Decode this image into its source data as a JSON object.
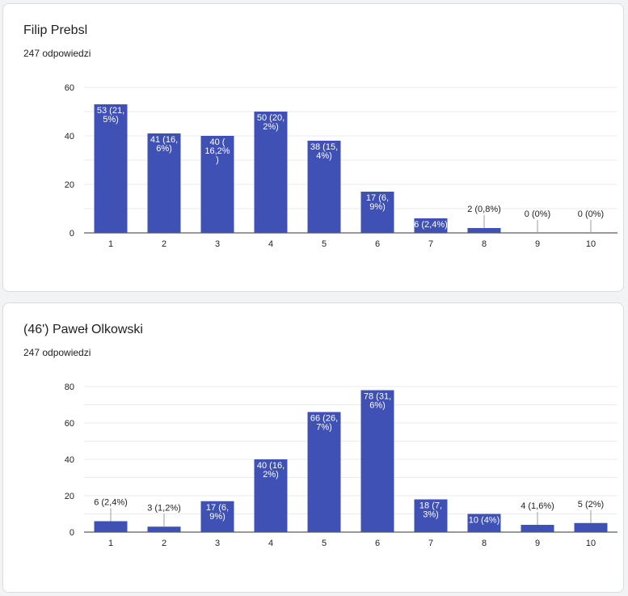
{
  "charts": [
    {
      "title": "Filip Prebsl",
      "responses": "247 odpowiedzi"
    },
    {
      "title": "(46') Paweł Olkowski",
      "responses": "247 odpowiedzi"
    }
  ],
  "colors": {
    "bar": "#3f51b5",
    "grid": "#ebebeb",
    "axis": "#333333"
  },
  "chart_data": [
    {
      "type": "bar",
      "title": "Filip Prebsl",
      "subtitle": "247 odpowiedzi",
      "categories": [
        "1",
        "2",
        "3",
        "4",
        "5",
        "6",
        "7",
        "8",
        "9",
        "10"
      ],
      "values": [
        53,
        41,
        40,
        50,
        38,
        17,
        6,
        2,
        0,
        0
      ],
      "data_labels": [
        [
          "53 (21,",
          "5%)"
        ],
        [
          "41 (16,",
          "6%)"
        ],
        [
          "40 (",
          "16,2%",
          ")"
        ],
        [
          "50 (20,",
          "2%)"
        ],
        [
          "38 (15,",
          "4%)"
        ],
        [
          "17 (6,",
          "9%)"
        ],
        [
          "6 (2,4%)"
        ],
        [
          "2 (0,8%)"
        ],
        [
          "0 (0%)"
        ],
        [
          "0 (0%)"
        ]
      ],
      "y_ticks": [
        0,
        20,
        40,
        60
      ],
      "ylim": [
        0,
        60
      ],
      "grid": true,
      "legend": "none"
    },
    {
      "type": "bar",
      "title": "(46') Paweł Olkowski",
      "subtitle": "247 odpowiedzi",
      "categories": [
        "1",
        "2",
        "3",
        "4",
        "5",
        "6",
        "7",
        "8",
        "9",
        "10"
      ],
      "values": [
        6,
        3,
        17,
        40,
        66,
        78,
        18,
        10,
        4,
        5
      ],
      "data_labels": [
        [
          "6 (2,4%)"
        ],
        [
          "3 (1,2%)"
        ],
        [
          "17 (6,",
          "9%)"
        ],
        [
          "40 (16,",
          "2%)"
        ],
        [
          "66 (26,",
          "7%)"
        ],
        [
          "78 (31,",
          "6%)"
        ],
        [
          "18 (7,",
          "3%)"
        ],
        [
          "10 (4%)"
        ],
        [
          "4 (1,6%)"
        ],
        [
          "5 (2%)"
        ]
      ],
      "y_ticks": [
        0,
        20,
        40,
        60,
        80
      ],
      "ylim": [
        0,
        80
      ],
      "grid": true,
      "legend": "none"
    }
  ]
}
